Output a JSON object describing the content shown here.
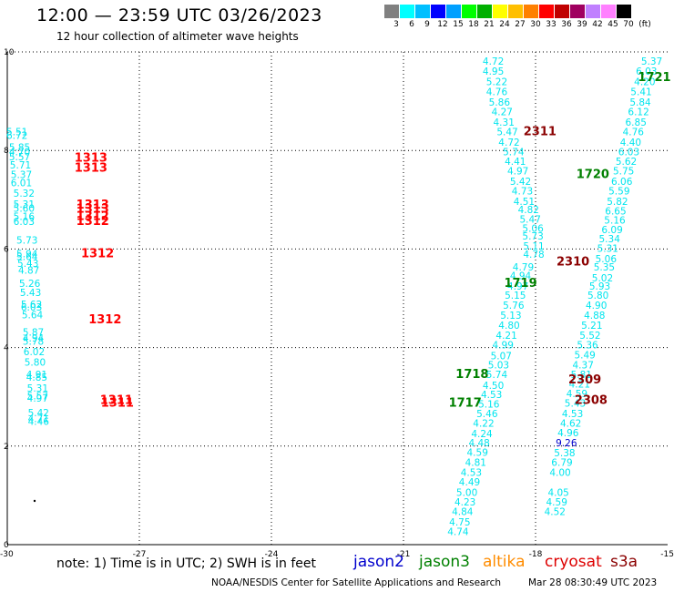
{
  "header": {
    "title": "12:00 — 23:59 UTC 03/26/2023",
    "subtitle": "12 hour collection of altimeter wave heights"
  },
  "legend": {
    "unit_label": "(ft)",
    "colors": [
      "#808080",
      "#00ffff",
      "#00bfff",
      "#0000ff",
      "#00a0ff",
      "#00ff00",
      "#00b000",
      "#ffff00",
      "#ffbf00",
      "#ff8000",
      "#ff0000",
      "#c00000",
      "#a00060",
      "#c080ff",
      "#ff80ff",
      "#000000"
    ],
    "labels": [
      "3",
      "6",
      "9",
      "12",
      "15",
      "18",
      "21",
      "24",
      "27",
      "30",
      "33",
      "36",
      "39",
      "42",
      "45",
      "70"
    ]
  },
  "axes": {
    "x_ticks": [
      "-30",
      "-27",
      "-24",
      "-21",
      "-18",
      "-15"
    ],
    "y_ticks": [
      "0",
      "2",
      "4",
      "6",
      "8",
      "10"
    ]
  },
  "note": "note:  1) Time is in UTC; 2) SWH is in feet",
  "satellites": [
    {
      "name": "jason2",
      "color": "#0000cd"
    },
    {
      "name": "jason3",
      "color": "#008000"
    },
    {
      "name": "altika",
      "color": "#ff8c00"
    },
    {
      "name": "cryosat",
      "color": "#dd0000"
    },
    {
      "name": "s3a",
      "color": "#8b0000"
    }
  ],
  "footer": {
    "credit": "NOAA/NESDIS Center for Satellite Applications and Research",
    "date": "Mar 28 08:30:49 UTC 2023"
  },
  "map_data": {
    "colors": {
      "cyan": "#00e5ee",
      "blue": "#0000cd",
      "green": "#008000",
      "red": "#ff0000",
      "darkred": "#8b0000"
    },
    "points": [
      {
        "x": -29.78,
        "y": 7.88,
        "v": "5.51",
        "c": "cyan"
      },
      {
        "x": -29.78,
        "y": 7.78,
        "v": "6.72",
        "c": "cyan"
      },
      {
        "x": -29.72,
        "y": 7.43,
        "v": "5.85",
        "c": "cyan"
      },
      {
        "x": -29.72,
        "y": 7.3,
        "v": "4.70",
        "c": "cyan"
      },
      {
        "x": -29.72,
        "y": 7.16,
        "v": "5.57",
        "c": "cyan"
      },
      {
        "x": -29.7,
        "y": 6.92,
        "v": "5.71",
        "c": "cyan"
      },
      {
        "x": -29.68,
        "y": 6.64,
        "v": "5.37",
        "c": "cyan"
      },
      {
        "x": -29.68,
        "y": 6.4,
        "v": "6.01",
        "c": "cyan"
      },
      {
        "x": -29.62,
        "y": 6.1,
        "v": "5.32",
        "c": "cyan"
      },
      {
        "x": -29.62,
        "y": 5.78,
        "v": "5.31",
        "c": "cyan"
      },
      {
        "x": -29.62,
        "y": 5.66,
        "v": "5.60",
        "c": "cyan"
      },
      {
        "x": -29.62,
        "y": 5.42,
        "v": "5.16",
        "c": "cyan"
      },
      {
        "x": -29.62,
        "y": 5.28,
        "v": "6.03",
        "c": "cyan"
      },
      {
        "x": -29.55,
        "y": 4.74,
        "v": "5.73",
        "c": "cyan"
      },
      {
        "x": -29.55,
        "y": 4.34,
        "v": "5.94",
        "c": "cyan"
      },
      {
        "x": -29.55,
        "y": 4.26,
        "v": "5.64",
        "c": "cyan"
      },
      {
        "x": -29.53,
        "y": 4.06,
        "v": "5.43",
        "c": "cyan"
      },
      {
        "x": -29.51,
        "y": 3.86,
        "v": "4.87",
        "c": "cyan"
      },
      {
        "x": -29.49,
        "y": 3.48,
        "v": "5.26",
        "c": "cyan"
      },
      {
        "x": -29.47,
        "y": 3.21,
        "v": "5.43",
        "c": "cyan"
      },
      {
        "x": -29.45,
        "y": 2.87,
        "v": "5.62",
        "c": "cyan"
      },
      {
        "x": -29.45,
        "y": 2.79,
        "v": "6.03",
        "c": "cyan"
      },
      {
        "x": -29.43,
        "y": 2.57,
        "v": "5.64",
        "c": "cyan"
      },
      {
        "x": -29.41,
        "y": 2.06,
        "v": "5.87",
        "c": "cyan"
      },
      {
        "x": -29.41,
        "y": 1.9,
        "v": "4.94",
        "c": "cyan"
      },
      {
        "x": -29.41,
        "y": 1.8,
        "v": "5.78",
        "c": "cyan"
      },
      {
        "x": -29.39,
        "y": 1.5,
        "v": "6.02",
        "c": "cyan"
      },
      {
        "x": -29.37,
        "y": 1.2,
        "v": "5.80",
        "c": "cyan"
      },
      {
        "x": -29.33,
        "y": 0.84,
        "v": "4.91",
        "c": "cyan"
      },
      {
        "x": -29.33,
        "y": 0.76,
        "v": "4.85",
        "c": "cyan"
      },
      {
        "x": -29.31,
        "y": 0.44,
        "v": "5.31",
        "c": "cyan"
      },
      {
        "x": -29.31,
        "y": 0.22,
        "v": "5.57",
        "c": "cyan"
      },
      {
        "x": -29.31,
        "y": 0.15,
        "v": "4.97",
        "c": "cyan"
      },
      {
        "x": -29.29,
        "y": -0.27,
        "v": "5.42",
        "c": "cyan"
      },
      {
        "x": -29.29,
        "y": -0.44,
        "v": "4.71",
        "c": "cyan"
      },
      {
        "x": -29.29,
        "y": -0.52,
        "v": "4.46",
        "c": "cyan"
      },
      {
        "x": -18.96,
        "y": 9.93,
        "v": "4.72",
        "c": "cyan"
      },
      {
        "x": -18.96,
        "y": 9.64,
        "v": "4.95",
        "c": "cyan"
      },
      {
        "x": -18.88,
        "y": 9.34,
        "v": "5.22",
        "c": "cyan"
      },
      {
        "x": -18.88,
        "y": 9.04,
        "v": "4.76",
        "c": "cyan"
      },
      {
        "x": -18.82,
        "y": 8.74,
        "v": "5.86",
        "c": "cyan"
      },
      {
        "x": -18.76,
        "y": 8.46,
        "v": "4.27",
        "c": "cyan"
      },
      {
        "x": -18.72,
        "y": 8.16,
        "v": "4.31",
        "c": "cyan"
      },
      {
        "x": -18.64,
        "y": 7.88,
        "v": "5.47",
        "c": "cyan"
      },
      {
        "x": -18.6,
        "y": 7.58,
        "v": "4.72",
        "c": "cyan"
      },
      {
        "x": -18.5,
        "y": 7.3,
        "v": "5.74",
        "c": "cyan"
      },
      {
        "x": -18.46,
        "y": 7.02,
        "v": "4.41",
        "c": "cyan"
      },
      {
        "x": -18.4,
        "y": 6.74,
        "v": "4.97",
        "c": "cyan"
      },
      {
        "x": -18.34,
        "y": 6.44,
        "v": "5.42",
        "c": "cyan"
      },
      {
        "x": -18.3,
        "y": 6.16,
        "v": "4.73",
        "c": "cyan"
      },
      {
        "x": -18.26,
        "y": 5.86,
        "v": "4.51",
        "c": "cyan"
      },
      {
        "x": -18.16,
        "y": 5.62,
        "v": "4.82",
        "c": "cyan"
      },
      {
        "x": -18.12,
        "y": 5.34,
        "v": "5.47",
        "c": "cyan"
      },
      {
        "x": -18.06,
        "y": 5.08,
        "v": "5.06",
        "c": "cyan"
      },
      {
        "x": -18.06,
        "y": 4.86,
        "v": "5.73",
        "c": "cyan"
      },
      {
        "x": -18.04,
        "y": 4.56,
        "v": "5.11",
        "c": "cyan"
      },
      {
        "x": -18.04,
        "y": 4.32,
        "v": "4.78",
        "c": "cyan"
      },
      {
        "x": -18.28,
        "y": 3.96,
        "v": "4.79",
        "c": "cyan"
      },
      {
        "x": -18.34,
        "y": 3.7,
        "v": "4.94",
        "c": "cyan"
      },
      {
        "x": -18.4,
        "y": 3.4,
        "v": "4.97",
        "c": "cyan"
      },
      {
        "x": -18.46,
        "y": 3.14,
        "v": "5.15",
        "c": "cyan"
      },
      {
        "x": -18.5,
        "y": 2.84,
        "v": "5.76",
        "c": "cyan"
      },
      {
        "x": -18.56,
        "y": 2.56,
        "v": "5.13",
        "c": "cyan"
      },
      {
        "x": -18.6,
        "y": 2.26,
        "v": "4.80",
        "c": "cyan"
      },
      {
        "x": -18.66,
        "y": 1.98,
        "v": "4.21",
        "c": "cyan"
      },
      {
        "x": -18.74,
        "y": 1.7,
        "v": "4.99",
        "c": "cyan"
      },
      {
        "x": -18.78,
        "y": 1.38,
        "v": "5.07",
        "c": "cyan"
      },
      {
        "x": -18.84,
        "y": 1.12,
        "v": "5.03",
        "c": "cyan"
      },
      {
        "x": -18.88,
        "y": 0.84,
        "v": "5.74",
        "c": "cyan"
      },
      {
        "x": -18.96,
        "y": 0.52,
        "v": "4.50",
        "c": "cyan"
      },
      {
        "x": -19.0,
        "y": 0.26,
        "v": "4.53",
        "c": "cyan"
      },
      {
        "x": -19.06,
        "y": -0.02,
        "v": "5.16",
        "c": "cyan"
      },
      {
        "x": -19.1,
        "y": -0.3,
        "v": "5.46",
        "c": "cyan"
      },
      {
        "x": -19.18,
        "y": -0.58,
        "v": "4.22",
        "c": "cyan"
      },
      {
        "x": -19.22,
        "y": -0.88,
        "v": "4.24",
        "c": "cyan"
      },
      {
        "x": -19.28,
        "y": -1.14,
        "v": "4.48",
        "c": "cyan"
      },
      {
        "x": -19.32,
        "y": -1.42,
        "v": "4.59",
        "c": "cyan"
      },
      {
        "x": -19.36,
        "y": -1.72,
        "v": "4.81",
        "c": "cyan"
      },
      {
        "x": -19.46,
        "y": -2.0,
        "v": "4.53",
        "c": "cyan"
      },
      {
        "x": -19.5,
        "y": -2.28,
        "v": "4.49",
        "c": "cyan"
      },
      {
        "x": -19.56,
        "y": -2.58,
        "v": "5.00",
        "c": "cyan"
      },
      {
        "x": -19.6,
        "y": -2.86,
        "v": "4.23",
        "c": "cyan"
      },
      {
        "x": -19.66,
        "y": -3.14,
        "v": "4.84",
        "c": "cyan"
      },
      {
        "x": -19.72,
        "y": -3.44,
        "v": "4.75",
        "c": "cyan"
      },
      {
        "x": -19.76,
        "y": -3.72,
        "v": "4.74",
        "c": "cyan"
      },
      {
        "x": -15.36,
        "y": 9.93,
        "v": "5.37",
        "c": "cyan"
      },
      {
        "x": -15.48,
        "y": 9.64,
        "v": "6.03",
        "c": "cyan"
      },
      {
        "x": -15.52,
        "y": 9.34,
        "v": "4.20",
        "c": "cyan"
      },
      {
        "x": -15.6,
        "y": 9.04,
        "v": "5.41",
        "c": "cyan"
      },
      {
        "x": -15.62,
        "y": 8.74,
        "v": "5.84",
        "c": "cyan"
      },
      {
        "x": -15.66,
        "y": 8.46,
        "v": "6.12",
        "c": "cyan"
      },
      {
        "x": -15.72,
        "y": 8.16,
        "v": "6.85",
        "c": "cyan"
      },
      {
        "x": -15.78,
        "y": 7.88,
        "v": "4.76",
        "c": "cyan"
      },
      {
        "x": -15.84,
        "y": 7.58,
        "v": "4.40",
        "c": "cyan"
      },
      {
        "x": -15.88,
        "y": 7.3,
        "v": "6.03",
        "c": "cyan"
      },
      {
        "x": -15.94,
        "y": 7.02,
        "v": "5.62",
        "c": "cyan"
      },
      {
        "x": -16.0,
        "y": 6.74,
        "v": "5.75",
        "c": "cyan"
      },
      {
        "x": -16.04,
        "y": 6.44,
        "v": "6.06",
        "c": "cyan"
      },
      {
        "x": -16.1,
        "y": 6.16,
        "v": "5.59",
        "c": "cyan"
      },
      {
        "x": -16.14,
        "y": 5.86,
        "v": "5.82",
        "c": "cyan"
      },
      {
        "x": -16.18,
        "y": 5.58,
        "v": "6.65",
        "c": "cyan"
      },
      {
        "x": -16.2,
        "y": 5.32,
        "v": "5.16",
        "c": "cyan"
      },
      {
        "x": -16.26,
        "y": 5.04,
        "v": "6.09",
        "c": "cyan"
      },
      {
        "x": -16.32,
        "y": 4.78,
        "v": "5.34",
        "c": "cyan"
      },
      {
        "x": -16.36,
        "y": 4.5,
        "v": "5.31",
        "c": "cyan"
      },
      {
        "x": -16.4,
        "y": 4.2,
        "v": "5.06",
        "c": "cyan"
      },
      {
        "x": -16.44,
        "y": 3.96,
        "v": "5.35",
        "c": "cyan"
      },
      {
        "x": -16.48,
        "y": 3.64,
        "v": "5.02",
        "c": "cyan"
      },
      {
        "x": -16.54,
        "y": 3.4,
        "v": "5.93",
        "c": "cyan"
      },
      {
        "x": -16.58,
        "y": 3.14,
        "v": "5.80",
        "c": "cyan"
      },
      {
        "x": -16.62,
        "y": 2.84,
        "v": "4.90",
        "c": "cyan"
      },
      {
        "x": -16.66,
        "y": 2.56,
        "v": "4.88",
        "c": "cyan"
      },
      {
        "x": -16.72,
        "y": 2.26,
        "v": "5.21",
        "c": "cyan"
      },
      {
        "x": -16.76,
        "y": 1.98,
        "v": "5.52",
        "c": "cyan"
      },
      {
        "x": -16.82,
        "y": 1.7,
        "v": "5.36",
        "c": "cyan"
      },
      {
        "x": -16.88,
        "y": 1.4,
        "v": "5.49",
        "c": "cyan"
      },
      {
        "x": -16.92,
        "y": 1.12,
        "v": "4.37",
        "c": "cyan"
      },
      {
        "x": -16.96,
        "y": 0.84,
        "v": "5.81",
        "c": "cyan"
      },
      {
        "x": -17.0,
        "y": 0.56,
        "v": "4.21",
        "c": "cyan"
      },
      {
        "x": -17.06,
        "y": 0.28,
        "v": "4.59",
        "c": "cyan"
      },
      {
        "x": -17.1,
        "y": 0.0,
        "v": "5.43",
        "c": "cyan"
      },
      {
        "x": -17.16,
        "y": -0.3,
        "v": "4.53",
        "c": "cyan"
      },
      {
        "x": -17.2,
        "y": -0.58,
        "v": "4.62",
        "c": "cyan"
      },
      {
        "x": -17.26,
        "y": -0.86,
        "v": "4.96",
        "c": "cyan"
      },
      {
        "x": -17.3,
        "y": -1.14,
        "v": "9.26",
        "c": "blue"
      },
      {
        "x": -17.34,
        "y": -1.44,
        "v": "5.38",
        "c": "cyan"
      },
      {
        "x": -17.4,
        "y": -1.72,
        "v": "6.79",
        "c": "cyan"
      },
      {
        "x": -17.44,
        "y": -2.0,
        "v": "4.00",
        "c": "cyan"
      },
      {
        "x": -17.48,
        "y": -2.58,
        "v": "4.05",
        "c": "cyan"
      },
      {
        "x": -17.52,
        "y": -2.86,
        "v": "4.59",
        "c": "cyan"
      },
      {
        "x": -17.56,
        "y": -3.14,
        "v": "4.52",
        "c": "cyan"
      }
    ],
    "labels": [
      {
        "x": -28.1,
        "y": 7.12,
        "t": "1313",
        "c": "red"
      },
      {
        "x": -28.1,
        "y": 6.82,
        "t": "1313",
        "c": "red"
      },
      {
        "x": -28.06,
        "y": 5.76,
        "t": "1313",
        "c": "red"
      },
      {
        "x": -28.06,
        "y": 5.64,
        "t": "1313",
        "c": "red"
      },
      {
        "x": -28.06,
        "y": 5.42,
        "t": "1312",
        "c": "red"
      },
      {
        "x": -28.06,
        "y": 5.28,
        "t": "1312",
        "c": "red"
      },
      {
        "x": -27.95,
        "y": 4.34,
        "t": "1312",
        "c": "red"
      },
      {
        "x": -27.78,
        "y": 2.42,
        "t": "1312",
        "c": "red"
      },
      {
        "x": -27.52,
        "y": 0.08,
        "t": "1311",
        "c": "red"
      },
      {
        "x": -27.5,
        "y": 0.0,
        "t": "1311",
        "c": "red"
      },
      {
        "x": -15.3,
        "y": 9.45,
        "t": "1721",
        "c": "green"
      },
      {
        "x": -17.9,
        "y": 7.88,
        "t": "2311",
        "c": "darkred"
      },
      {
        "x": -16.7,
        "y": 6.64,
        "t": "1720",
        "c": "green"
      },
      {
        "x": -17.15,
        "y": 4.1,
        "t": "2310",
        "c": "darkred"
      },
      {
        "x": -18.34,
        "y": 3.48,
        "t": "1719",
        "c": "green"
      },
      {
        "x": -19.44,
        "y": 0.84,
        "t": "1718",
        "c": "green"
      },
      {
        "x": -19.6,
        "y": 0.0,
        "t": "1717",
        "c": "green"
      },
      {
        "x": -16.88,
        "y": 0.68,
        "t": "2309",
        "c": "darkred"
      },
      {
        "x": -16.74,
        "y": 0.08,
        "t": "2308",
        "c": "darkred"
      }
    ]
  }
}
